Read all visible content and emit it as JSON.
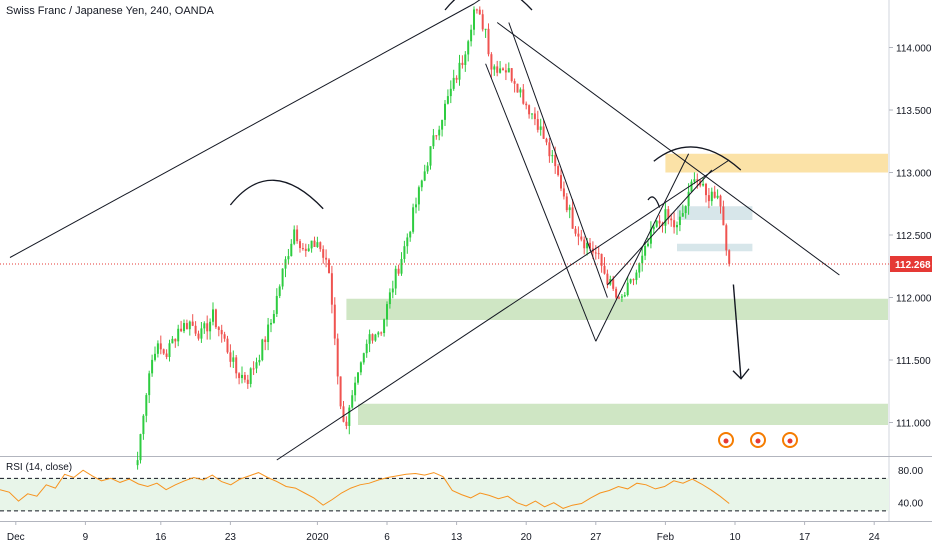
{
  "chart_data": {
    "type": "candlestick",
    "title": "Swiss Franc / Japanese Yen, 240, OANDA",
    "symbol": "CHFJPY",
    "timeframe": "240",
    "source": "OANDA",
    "price_axis": {
      "ticks": [
        "114.000",
        "113.500",
        "113.000",
        "112.500",
        "112.000",
        "111.500",
        "111.000"
      ],
      "tick_values": [
        114.0,
        113.5,
        113.0,
        112.5,
        112.0,
        111.5,
        111.0
      ],
      "ylim": [
        110.74,
        114.38
      ]
    },
    "last_price": {
      "label": "112.268",
      "value": 112.268,
      "color": "#e53935"
    },
    "time_axis": {
      "labels": [
        "Dec",
        "9",
        "16",
        "23",
        "2020",
        "6",
        "13",
        "20",
        "27",
        "Feb",
        "10",
        "17",
        "24"
      ],
      "bar_index": [
        1,
        13,
        26,
        38,
        53,
        65,
        77,
        89,
        101,
        113,
        125,
        137,
        149
      ]
    },
    "ohlc_close_path": [
      {
        "x": 22,
        "close": 110.7
      },
      {
        "x": 23,
        "close": 111.1
      },
      {
        "x": 24,
        "close": 111.4
      },
      {
        "x": 25,
        "close": 111.6
      },
      {
        "x": 27,
        "close": 111.55
      },
      {
        "x": 29,
        "close": 111.75
      },
      {
        "x": 31,
        "close": 111.8
      },
      {
        "x": 33,
        "close": 111.7
      },
      {
        "x": 35,
        "close": 111.85
      },
      {
        "x": 37,
        "close": 111.65
      },
      {
        "x": 39,
        "close": 111.4
      },
      {
        "x": 41,
        "close": 111.35
      },
      {
        "x": 43,
        "close": 111.55
      },
      {
        "x": 45,
        "close": 111.8
      },
      {
        "x": 47,
        "close": 112.2
      },
      {
        "x": 49,
        "close": 112.55
      },
      {
        "x": 51,
        "close": 112.35
      },
      {
        "x": 53,
        "close": 112.45
      },
      {
        "x": 55,
        "close": 112.2
      },
      {
        "x": 56,
        "close": 111.7
      },
      {
        "x": 57,
        "close": 111.1
      },
      {
        "x": 58,
        "close": 111.0
      },
      {
        "x": 60,
        "close": 111.35
      },
      {
        "x": 62,
        "close": 111.7
      },
      {
        "x": 64,
        "close": 111.75
      },
      {
        "x": 66,
        "close": 112.1
      },
      {
        "x": 68,
        "close": 112.4
      },
      {
        "x": 70,
        "close": 112.75
      },
      {
        "x": 72,
        "close": 113.1
      },
      {
        "x": 74,
        "close": 113.4
      },
      {
        "x": 76,
        "close": 113.65
      },
      {
        "x": 78,
        "close": 113.9
      },
      {
        "x": 80,
        "close": 114.3
      },
      {
        "x": 82,
        "close": 114.15
      },
      {
        "x": 83,
        "close": 113.85
      },
      {
        "x": 85,
        "close": 113.85
      },
      {
        "x": 87,
        "close": 113.75
      },
      {
        "x": 89,
        "close": 113.55
      },
      {
        "x": 91,
        "close": 113.4
      },
      {
        "x": 93,
        "close": 113.15
      },
      {
        "x": 95,
        "close": 112.9
      },
      {
        "x": 97,
        "close": 112.6
      },
      {
        "x": 99,
        "close": 112.45
      },
      {
        "x": 101,
        "close": 112.35
      },
      {
        "x": 103,
        "close": 112.15
      },
      {
        "x": 105,
        "close": 111.95
      },
      {
        "x": 107,
        "close": 112.1
      },
      {
        "x": 109,
        "close": 112.3
      },
      {
        "x": 111,
        "close": 112.55
      },
      {
        "x": 113,
        "close": 112.65
      },
      {
        "x": 115,
        "close": 112.55
      },
      {
        "x": 117,
        "close": 112.8
      },
      {
        "x": 118,
        "close": 113.0
      },
      {
        "x": 120,
        "close": 112.8
      },
      {
        "x": 122,
        "close": 112.85
      },
      {
        "x": 123,
        "close": 112.6
      },
      {
        "x": 124,
        "close": 112.27
      }
    ],
    "zones": [
      {
        "name": "resistance",
        "from": 113.0,
        "to": 113.15,
        "bar_range": [
          113,
          155
        ],
        "color": "#fbe2a7"
      },
      {
        "name": "support-1",
        "from": 111.82,
        "to": 111.99,
        "bar_range": [
          58,
          155
        ],
        "color": "#cfe6c4"
      },
      {
        "name": "support-2",
        "from": 110.98,
        "to": 111.15,
        "bar_range": [
          60,
          155
        ],
        "color": "#cfe6c4"
      },
      {
        "name": "level-1",
        "from": 112.62,
        "to": 112.73,
        "bar_range": [
          115,
          128
        ],
        "color": "#d7e6ea"
      },
      {
        "name": "level-2",
        "from": 112.37,
        "to": 112.43,
        "bar_range": [
          115,
          128
        ],
        "color": "#d7e6ea"
      }
    ],
    "trendlines": [
      {
        "from": {
          "x": 0,
          "price": 112.32
        },
        "to": {
          "x": 80,
          "price": 114.35
        }
      },
      {
        "from": {
          "x": 80,
          "price": 114.35
        },
        "to": {
          "x": 88,
          "price": 114.6
        }
      },
      {
        "from": {
          "x": 84,
          "price": 114.2
        },
        "to": {
          "x": 143,
          "price": 112.18
        }
      },
      {
        "from": {
          "x": 46,
          "price": 110.7
        },
        "to": {
          "x": 124,
          "price": 113.1
        }
      },
      {
        "from": {
          "x": 82,
          "price": 113.87
        },
        "to": {
          "x": 101,
          "price": 111.65
        }
      },
      {
        "from": {
          "x": 86,
          "price": 114.2
        },
        "to": {
          "x": 103,
          "price": 112.0
        }
      },
      {
        "from": {
          "x": 101,
          "price": 111.65
        },
        "to": {
          "x": 117,
          "price": 113.15
        }
      },
      {
        "from": {
          "x": 103,
          "price": 112.1
        },
        "to": {
          "x": 121,
          "price": 113.02
        }
      }
    ],
    "forecast_arrow": {
      "from": {
        "x": 123,
        "price": 112.2
      },
      "to": {
        "x": 125,
        "price": 111.35
      }
    },
    "rsi": {
      "label": "RSI (14, close)",
      "ticks": [
        "80.00",
        "40.00"
      ],
      "tick_values": [
        80,
        40
      ],
      "band": [
        30,
        70
      ],
      "ylim": [
        20,
        95
      ],
      "color": "#f7931e",
      "values": [
        56,
        53,
        42,
        51,
        48,
        62,
        58,
        75,
        71,
        80,
        73,
        67,
        70,
        65,
        69,
        63,
        60,
        64,
        56,
        62,
        67,
        71,
        68,
        74,
        66,
        62,
        69,
        73,
        77,
        71,
        66,
        60,
        58,
        52,
        46,
        37,
        44,
        52,
        58,
        62,
        64,
        68,
        71,
        73,
        75,
        76,
        74,
        77,
        72,
        55,
        50,
        46,
        52,
        49,
        45,
        48,
        40,
        36,
        42,
        35,
        40,
        33,
        37,
        39,
        46,
        52,
        55,
        60,
        57,
        64,
        62,
        57,
        60,
        67,
        64,
        69,
        63,
        56,
        48,
        39
      ]
    },
    "grid": false,
    "colors": {
      "up": "#26a69a",
      "up_bright": "#2ecc40",
      "down": "#ef5350",
      "line": "#131722"
    }
  }
}
